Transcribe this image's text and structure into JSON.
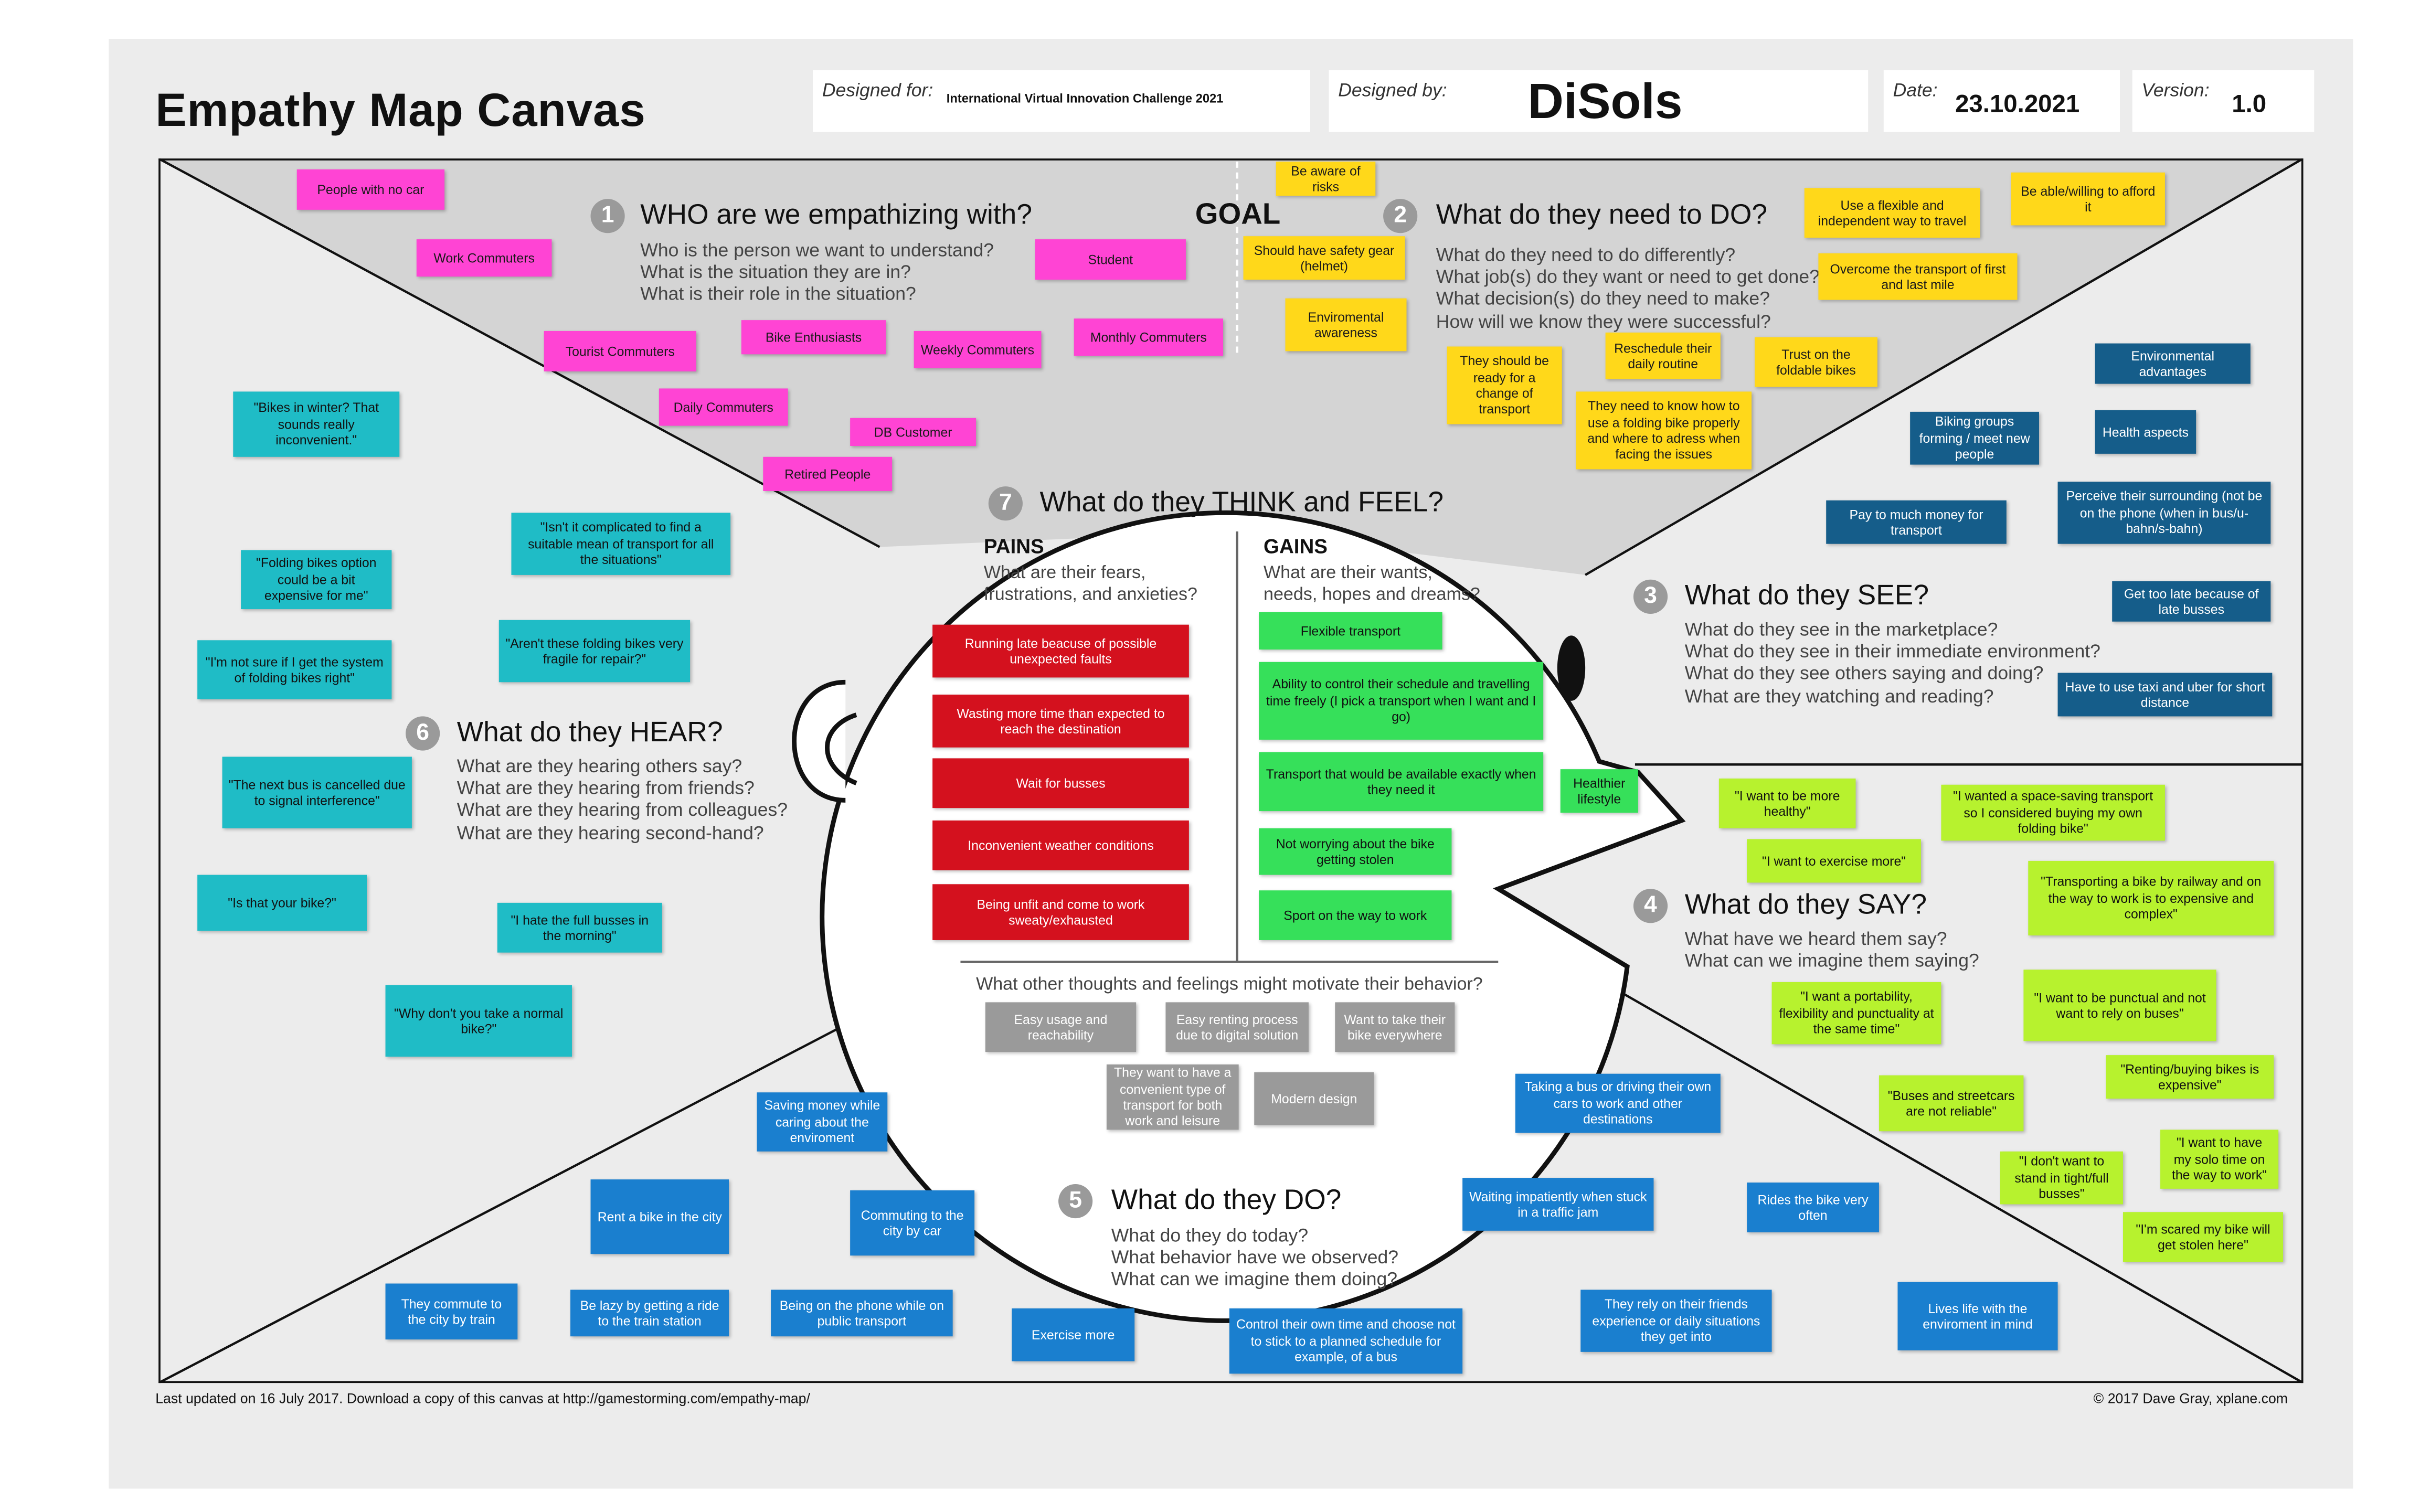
{
  "header": {
    "title": "Empathy Map Canvas",
    "designed_for_label": "Designed for:",
    "designed_for_value": "International Virtual Innovation Challenge 2021",
    "designed_by_label": "Designed by:",
    "designed_by_value": "DiSols",
    "date_label": "Date:",
    "date_value": "23.10.2021",
    "version_label": "Version:",
    "version_value": "1.0"
  },
  "goal": "GOAL",
  "sections": {
    "who": {
      "num": "1",
      "title": "WHO are we empathizing with?",
      "lines": [
        "Who is the person we want to understand?",
        "What is the situation they are in?",
        "What is their role in the situation?"
      ]
    },
    "do_need": {
      "num": "2",
      "title": "What do they need to DO?",
      "lines": [
        "What do they need to do differently?",
        "What job(s) do they want or need to get done?",
        "What decision(s) do they need to make?",
        "How will we know they were successful?"
      ]
    },
    "see": {
      "num": "3",
      "title": "What do they SEE?",
      "lines": [
        "What do they see in the marketplace?",
        "What do they see in their immediate environment?",
        "What do they see others saying and doing?",
        "What are they watching and reading?"
      ]
    },
    "say": {
      "num": "4",
      "title": "What do they SAY?",
      "lines": [
        "What have we heard them say?",
        "What can we imagine them saying?"
      ]
    },
    "do": {
      "num": "5",
      "title": "What do they DO?",
      "lines": [
        "What do they do today?",
        "What behavior have we observed?",
        "What can we imagine them doing?"
      ]
    },
    "hear": {
      "num": "6",
      "title": "What do they HEAR?",
      "lines": [
        "What are they hearing others say?",
        "What are they hearing from friends?",
        "What are they hearing from colleagues?",
        "What are they hearing second-hand?"
      ]
    },
    "think": {
      "num": "7",
      "title": "What do they THINK and FEEL?",
      "pains_label": "PAINS",
      "pains_lines": [
        "What are their fears,",
        "frustrations, and anxieties?"
      ],
      "gains_label": "GAINS",
      "gains_lines": [
        "What are their wants,",
        "needs, hopes and dreams?"
      ],
      "other_question": "What other thoughts and feelings might motivate their behavior?"
    }
  },
  "notes": {
    "who": [
      "People with no car",
      "Work Commuters",
      "Student",
      "Tourist Commuters",
      "Bike Enthusiasts",
      "Weekly Commuters",
      "Monthly Commuters",
      "Daily Commuters",
      "DB Customer",
      "Retired People"
    ],
    "goal": [
      "Be aware of risks",
      "Should have safety gear (helmet)",
      "Enviromental awareness"
    ],
    "do_need": [
      "Use a flexible and independent way to travel",
      "Be able/willing to afford it",
      "Overcome the transport of first and last mile",
      "They should be ready for a change of transport",
      "Reschedule their daily routine",
      "Trust on the foldable bikes",
      "They need to know how to use a folding bike properly and where to adress when facing the issues"
    ],
    "see": [
      "Environmental advantages",
      "Biking groups forming / meet new people",
      "Health aspects",
      "Pay to much money for transport",
      "Perceive their surrounding (not be on the phone (when in bus/u-bahn/s-bahn)",
      "Get too late because of late busses",
      "Have to use taxi and uber for short distance"
    ],
    "hear": [
      "\"Bikes in winter? That sounds really inconvenient.\"",
      "\"Isn't it complicated to find a suitable mean of transport for all the situations\"",
      "\"Folding bikes option could be a bit expensive for me\"",
      "\"Aren't these folding bikes very fragile for repair?\"",
      "\"I'm not sure if I get the system of folding bikes right\"",
      "\"The next bus is cancelled due to signal interference\"",
      "\"Is that your bike?\"",
      "\"I hate the full busses in the morning\"",
      "\"Why don't you take a normal bike?\""
    ],
    "pains": [
      "Running late beacuse of possible unexpected faults",
      "Wasting more time than expected to reach the destination",
      "Wait for busses",
      "Inconvenient weather conditions",
      "Being unfit and come to work sweaty/exhausted"
    ],
    "gains": [
      "Flexible transport",
      "Ability to control their schedule and travelling time freely (I pick a transport when I want and I go)",
      "Transport that would be available exactly when they need it",
      "Healthier lifestyle",
      "Not worrying about the bike getting stolen",
      "Sport on the way to work"
    ],
    "other": [
      "Easy usage and reachability",
      "Easy renting process due to digital solution",
      "Want to take their bike everywhere",
      "They want to have a convenient type of transport for both work and leisure",
      "Modern design"
    ],
    "say": [
      "\"I want to be more healthy\"",
      "\"I wanted a space-saving transport so I considered buying my own folding bike\"",
      "\"I want to exercise more\"",
      "\"Transporting a bike by railway and on the way to work is to expensive and complex\"",
      "\"I want a portability, flexibility and punctuality at the same time\"",
      "\"I want to be punctual and not want to rely on buses\"",
      "\"Renting/buying bikes is expensive\"",
      "\"Buses and streetcars are not reliable\"",
      "\"I want to have my solo time on the way to work\"",
      "\"I don't want to stand in tight/full busses\"",
      "\"I'm scared my bike will get stolen here\""
    ],
    "do": [
      "Saving money while caring about the enviroment",
      "Rent a bike in the city",
      "Commuting to the city by car",
      "They commute to the city by train",
      "Be lazy by getting a ride to the train station",
      "Being on the phone while on public transport",
      "Exercise more",
      "Control their own time and choose not to stick to a planned schedule for example, of a bus",
      "Taking a bus or driving their own cars to work and other destinations",
      "Waiting impatiently when stuck in a traffic jam",
      "Rides the bike very often",
      "They rely on their friends experience or daily situations they get into",
      "Lives life with the enviroment in mind"
    ]
  },
  "footer": {
    "left": "Last updated on 16 July 2017. Download a copy of this canvas at http://gamestorming.com/empathy-map/",
    "right": "© 2017 Dave Gray, xplane.com"
  },
  "colors": {
    "who": "#ff44d4",
    "goal": "#ffd81a",
    "see": "#155d8a",
    "hear": "#1fbcc6",
    "pains": "#d4111e",
    "gains": "#36e05a",
    "other": "#9a9a9a",
    "say": "#b7f22e",
    "do": "#1a7fcf"
  }
}
